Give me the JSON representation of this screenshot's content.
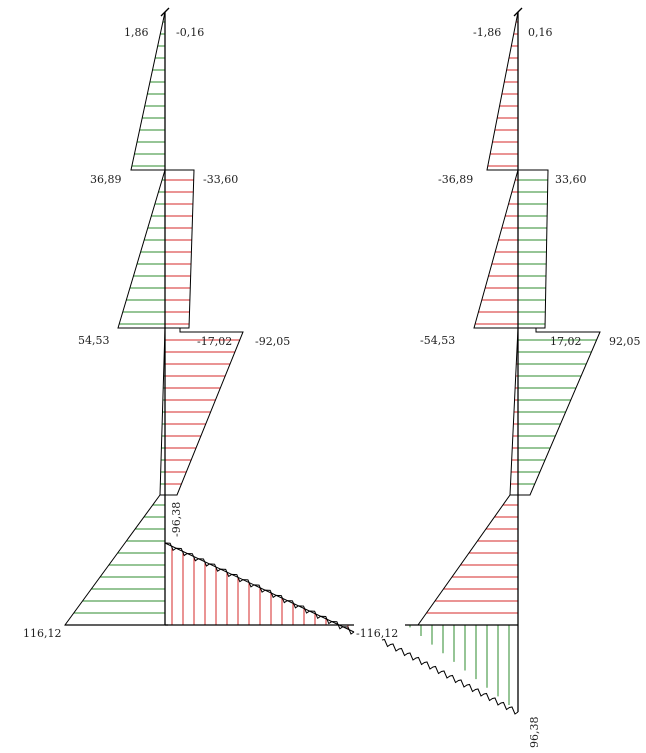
{
  "colors": {
    "positive": "#2e8b2e",
    "negative": "#d42a2a",
    "outline": "#000000"
  },
  "left_diagram": {
    "labels": {
      "top_left": "1,86",
      "top_right": "-0,16",
      "mid_left": "36,89",
      "mid_right": "-33,60",
      "low_left": "54,53",
      "low_inner": "-17,02",
      "low_right": "-92,05",
      "bend_vertical": "-96,38",
      "base_left": "116,12",
      "base_right": "-116,12"
    }
  },
  "right_diagram": {
    "labels": {
      "top_left": "-1,86",
      "top_right": "0,16",
      "mid_left": "-36,89",
      "mid_right": "33,60",
      "low_left": "-54,53",
      "low_inner": "17,02",
      "low_right": "92,05",
      "bend_vertical": "96,38"
    }
  }
}
